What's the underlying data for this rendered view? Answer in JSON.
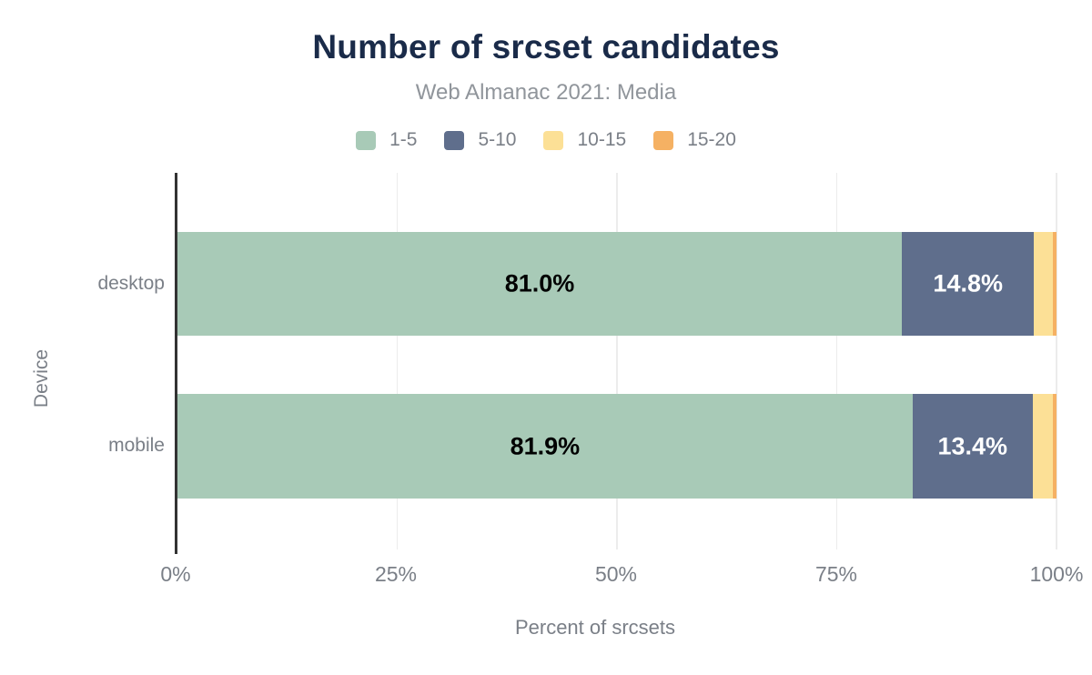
{
  "chart_data": {
    "type": "bar",
    "orientation": "horizontal",
    "stacked": true,
    "normalized_to_100": true,
    "title": "Number of srcset candidates",
    "subtitle": "Web Almanac 2021: Media",
    "categories": [
      "desktop",
      "mobile"
    ],
    "series": [
      {
        "name": "1-5",
        "color": "#a8cab7",
        "values": [
          81.0,
          81.9
        ],
        "labels": [
          "81.0%",
          "81.9%"
        ],
        "label_color": "#000000"
      },
      {
        "name": "5-10",
        "color": "#5f6e8c",
        "values": [
          14.8,
          13.4
        ],
        "labels": [
          "14.8%",
          "13.4%"
        ],
        "label_color": "#ffffff"
      },
      {
        "name": "10-15",
        "color": "#fce096",
        "values": [
          2.1,
          2.2
        ],
        "labels": [
          null,
          null
        ],
        "label_color": "#000000"
      },
      {
        "name": "15-20",
        "color": "#f5b163",
        "values": [
          0.4,
          0.45
        ],
        "labels": [
          null,
          null
        ],
        "label_color": "#000000"
      }
    ],
    "xlabel": "Percent of srcsets",
    "ylabel": "Device",
    "x_ticks": [
      "0%",
      "25%",
      "50%",
      "75%",
      "100%"
    ],
    "xlim": [
      0,
      100
    ],
    "legend_position": "top",
    "grid": "vertical",
    "accent_colors": {
      "title": "#1a2b49",
      "subtitle": "#90959b",
      "axis_text": "#7a7f87",
      "axis_line": "#333333",
      "gridline": "#ececec"
    }
  }
}
